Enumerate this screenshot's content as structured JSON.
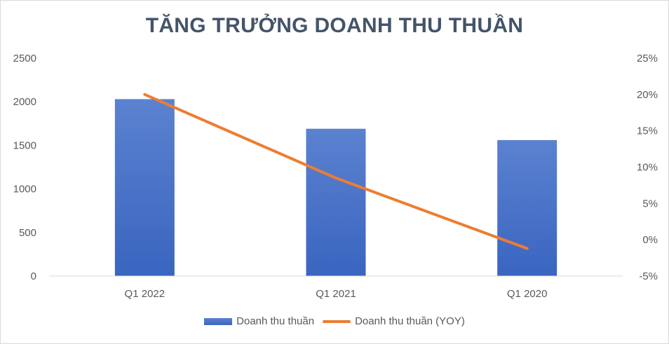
{
  "chart_data": {
    "type": "bar",
    "title": "TĂNG TRƯỞNG DOANH THU THUẦN",
    "categories": [
      "Q1 2022",
      "Q1 2021",
      "Q1 2020"
    ],
    "series": [
      {
        "name": "Doanh thu thuần",
        "type": "bar",
        "axis": "left",
        "values": [
          2030,
          1690,
          1560
        ]
      },
      {
        "name": "Doanh thu thuần (YOY)",
        "type": "line",
        "axis": "right",
        "values": [
          0.2,
          0.085,
          -0.012
        ]
      }
    ],
    "y_left": {
      "ylim": [
        0,
        2500
      ],
      "ticks": [
        "0",
        "500",
        "1000",
        "1500",
        "2000",
        "2500"
      ]
    },
    "y_right": {
      "ylim": [
        -0.05,
        0.25
      ],
      "ticks": [
        "-5%",
        "0%",
        "5%",
        "10%",
        "15%",
        "20%",
        "25%"
      ]
    },
    "grid": false,
    "legend": "bottom",
    "colors": {
      "bar_top": "#5b82d0",
      "bar_bottom": "#3a65c0",
      "line": "#ed7d31",
      "title": "#44546a",
      "text": "#595959",
      "axis": "#d9d9d9"
    }
  }
}
